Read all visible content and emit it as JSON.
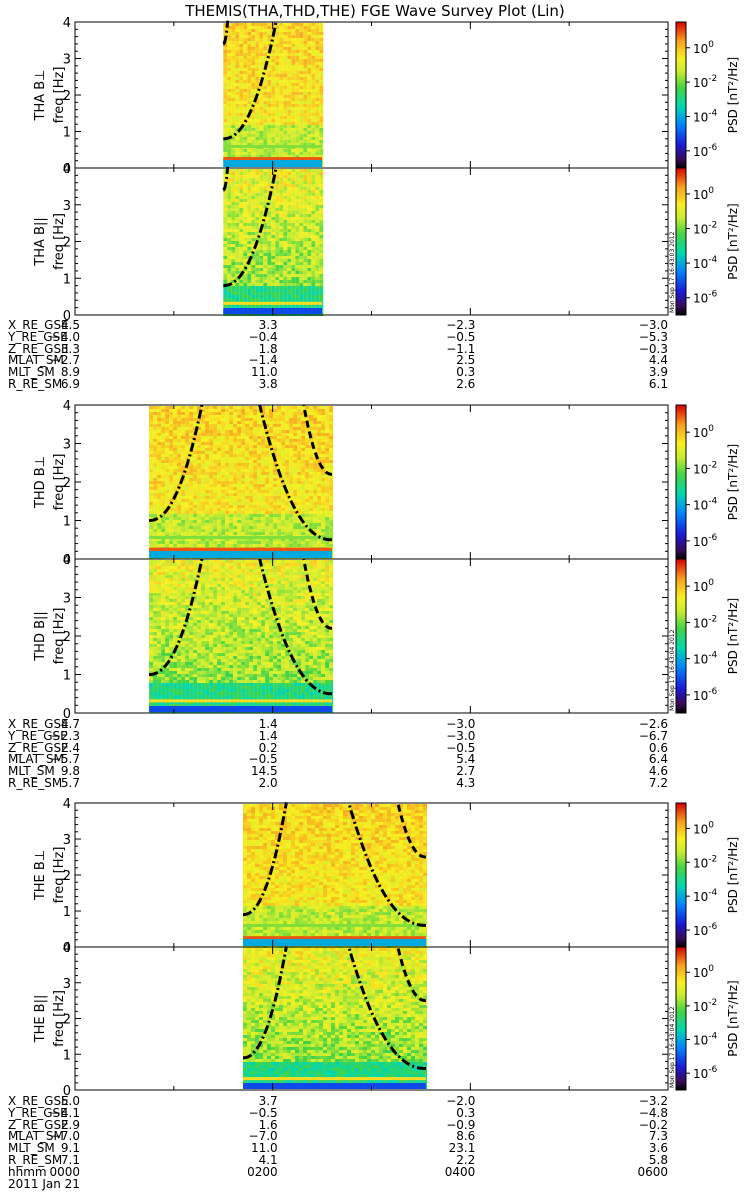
{
  "chart_data": {
    "type": "heatmap",
    "title": "THEMIS(THA,THD,THE) FGE Wave Survey Plot (Lin)",
    "xaxis": {
      "ticks": [
        "0000",
        "0200",
        "0400",
        "0600"
      ],
      "label": "hhmm",
      "date": "2011 Jan 21",
      "range_hours": [
        0,
        6
      ]
    },
    "colorbar": {
      "label": "PSD [nT²/Hz]",
      "ticks": [
        "10^0",
        "10^-2",
        "10^-4",
        "10^-6"
      ],
      "log_range": [
        -7,
        1.5
      ]
    },
    "yaxis": {
      "range": [
        0,
        4
      ],
      "ticks": [
        "0",
        "1",
        "2",
        "3",
        "4"
      ]
    },
    "probes": [
      {
        "name": "THA",
        "panels": [
          {
            "label": "THA B⊥",
            "ylabel": "freq [Hz]",
            "stamp": ""
          },
          {
            "label": "THA B||",
            "ylabel": "freq [Hz]",
            "stamp": "Mon Sep 17 16:43:03 2012"
          }
        ],
        "data_interval_hours": [
          1.5,
          2.5
        ],
        "curves": [
          {
            "style": "dashdot",
            "t0": 1.5,
            "f0": 0.8,
            "peak_hour": 2.05,
            "peak_f": 4.2,
            "cut": 1.5
          },
          {
            "style": "dashdot",
            "t0": 1.5,
            "f0": 3.4,
            "peak_hour": 1.55,
            "peak_f": 4.2,
            "cut": 1.5
          }
        ],
        "ephemeris": [
          {
            "name": "X_RE_GSE",
            "values": [
              "4.5",
              "3.3",
              "-2.3",
              "-3.0"
            ]
          },
          {
            "name": "Y_RE_GSE",
            "values": [
              "-4.0",
              "-0.4",
              "-0.5",
              "-5.3"
            ]
          },
          {
            "name": "Z_RE_GSE",
            "values": [
              "3.3",
              "1.8",
              "-1.1",
              "-0.3"
            ]
          },
          {
            "name": "MLAT_SM",
            "values": [
              "-2.7",
              "-1.4",
              "2.5",
              "4.4"
            ]
          },
          {
            "name": "MLT_SM",
            "values": [
              "8.9",
              "11.0",
              "0.3",
              "3.9"
            ]
          },
          {
            "name": "R_RE_SM",
            "values": [
              "6.9",
              "3.8",
              "2.6",
              "6.1"
            ]
          }
        ]
      },
      {
        "name": "THD",
        "panels": [
          {
            "label": "THD B⊥",
            "ylabel": "freq [Hz]",
            "stamp": ""
          },
          {
            "label": "THD B||",
            "ylabel": "freq [Hz]",
            "stamp": "Mon Sep 17 16:43:04 2012"
          }
        ],
        "data_interval_hours": [
          0.75,
          2.6
        ],
        "curves": [
          {
            "style": "dashdot",
            "t0": 0.75,
            "f0": 1.0,
            "peak_hour": 1.3,
            "peak_f": 4.2,
            "cut": 0.75
          },
          {
            "style": "dashdot",
            "t0": 2.6,
            "f0": 0.5,
            "peak_hour": 1.85,
            "peak_f": 4.2,
            "cut": 2.6
          },
          {
            "style": "dash",
            "t0": 2.6,
            "f0": 2.2,
            "peak_hour": 2.3,
            "peak_f": 4.2,
            "cut": 2.6
          }
        ],
        "ephemeris": [
          {
            "name": "X_RE_GSE",
            "values": [
              "4.7",
              "1.4",
              "-3.0",
              "-2.6"
            ]
          },
          {
            "name": "Y_RE_GSE",
            "values": [
              "-2.3",
              "1.4",
              "-3.0",
              "-6.7"
            ]
          },
          {
            "name": "Z_RE_GSE",
            "values": [
              "2.4",
              "0.2",
              "-0.5",
              "0.6"
            ]
          },
          {
            "name": "MLAT_SM",
            "values": [
              "-5.7",
              "-0.5",
              "5.4",
              "6.4"
            ]
          },
          {
            "name": "MLT_SM",
            "values": [
              "9.8",
              "14.5",
              "2.7",
              "4.6"
            ]
          },
          {
            "name": "R_RE_SM",
            "values": [
              "5.7",
              "2.0",
              "4.3",
              "7.2"
            ]
          }
        ]
      },
      {
        "name": "THE",
        "panels": [
          {
            "label": "THE B⊥",
            "ylabel": "freq [Hz]",
            "stamp": ""
          },
          {
            "label": "THE B||",
            "ylabel": "freq [Hz]",
            "stamp": "Mon Sep 17 16:43:04 2012"
          }
        ],
        "data_interval_hours": [
          1.7,
          3.55
        ],
        "curves": [
          {
            "style": "dashdot",
            "t0": 1.7,
            "f0": 0.9,
            "peak_hour": 2.15,
            "peak_f": 4.2,
            "cut": 1.7
          },
          {
            "style": "dashdot",
            "t0": 3.55,
            "f0": 0.6,
            "peak_hour": 2.75,
            "peak_f": 4.2,
            "cut": 3.55
          },
          {
            "style": "dash",
            "t0": 3.55,
            "f0": 2.5,
            "peak_hour": 3.25,
            "peak_f": 4.2,
            "cut": 3.55
          }
        ],
        "ephemeris": [
          {
            "name": "X_RE_GSE",
            "values": [
              "5.0",
              "3.7",
              "-2.0",
              "-3.2"
            ]
          },
          {
            "name": "Y_RE_GSE",
            "values": [
              "-4.1",
              "-0.5",
              "0.3",
              "-4.8"
            ]
          },
          {
            "name": "Z_RE_GSE",
            "values": [
              "2.9",
              "1.6",
              "-0.9",
              "-0.2"
            ]
          },
          {
            "name": "MLAT_SM",
            "values": [
              "-7.0",
              "-7.0",
              "8.6",
              "7.3"
            ]
          },
          {
            "name": "MLT_SM",
            "values": [
              "9.1",
              "11.0",
              "23.1",
              "3.6"
            ]
          },
          {
            "name": "R_RE_SM",
            "values": [
              "7.1",
              "4.1",
              "2.2",
              "5.8"
            ]
          }
        ]
      }
    ]
  },
  "colors": {
    "axis": "#000000",
    "background": "#ffffff"
  }
}
